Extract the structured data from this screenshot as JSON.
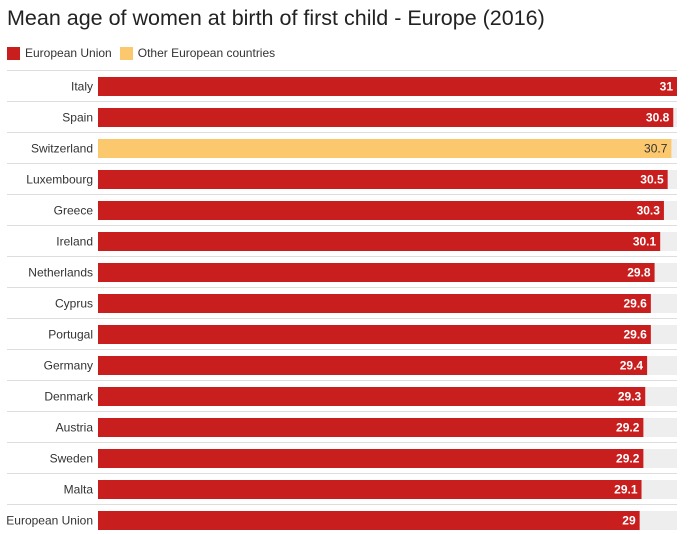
{
  "chart_data": {
    "type": "bar",
    "orientation": "horizontal",
    "title": "Mean age of women at birth of first child - Europe (2016)",
    "legend": [
      {
        "label": "European Union",
        "color": "#c81e1e"
      },
      {
        "label": "Other European countries",
        "color": "#fcc86e"
      }
    ],
    "categories": [
      "Italy",
      "Spain",
      "Switzerland",
      "Luxembourg",
      "Greece",
      "Ireland",
      "Netherlands",
      "Cyprus",
      "Portugal",
      "Germany",
      "Denmark",
      "Austria",
      "Sweden",
      "Malta",
      "European Union"
    ],
    "values": [
      31,
      30.8,
      30.7,
      30.5,
      30.3,
      30.1,
      29.8,
      29.6,
      29.6,
      29.4,
      29.3,
      29.2,
      29.2,
      29.1,
      29
    ],
    "value_labels": [
      "31",
      "30.8",
      "30.7",
      "30.5",
      "30.3",
      "30.1",
      "29.8",
      "29.6",
      "29.6",
      "29.4",
      "29.3",
      "29.2",
      "29.2",
      "29.1",
      "29"
    ],
    "groups": [
      "European Union",
      "European Union",
      "Other European countries",
      "European Union",
      "European Union",
      "European Union",
      "European Union",
      "European Union",
      "European Union",
      "European Union",
      "European Union",
      "European Union",
      "European Union",
      "European Union",
      "European Union"
    ],
    "xlim": [
      0,
      31
    ],
    "grid": false,
    "legend_position": "top-left",
    "background_track_color": "#eeeeee",
    "separator_color": "#dddddd"
  }
}
